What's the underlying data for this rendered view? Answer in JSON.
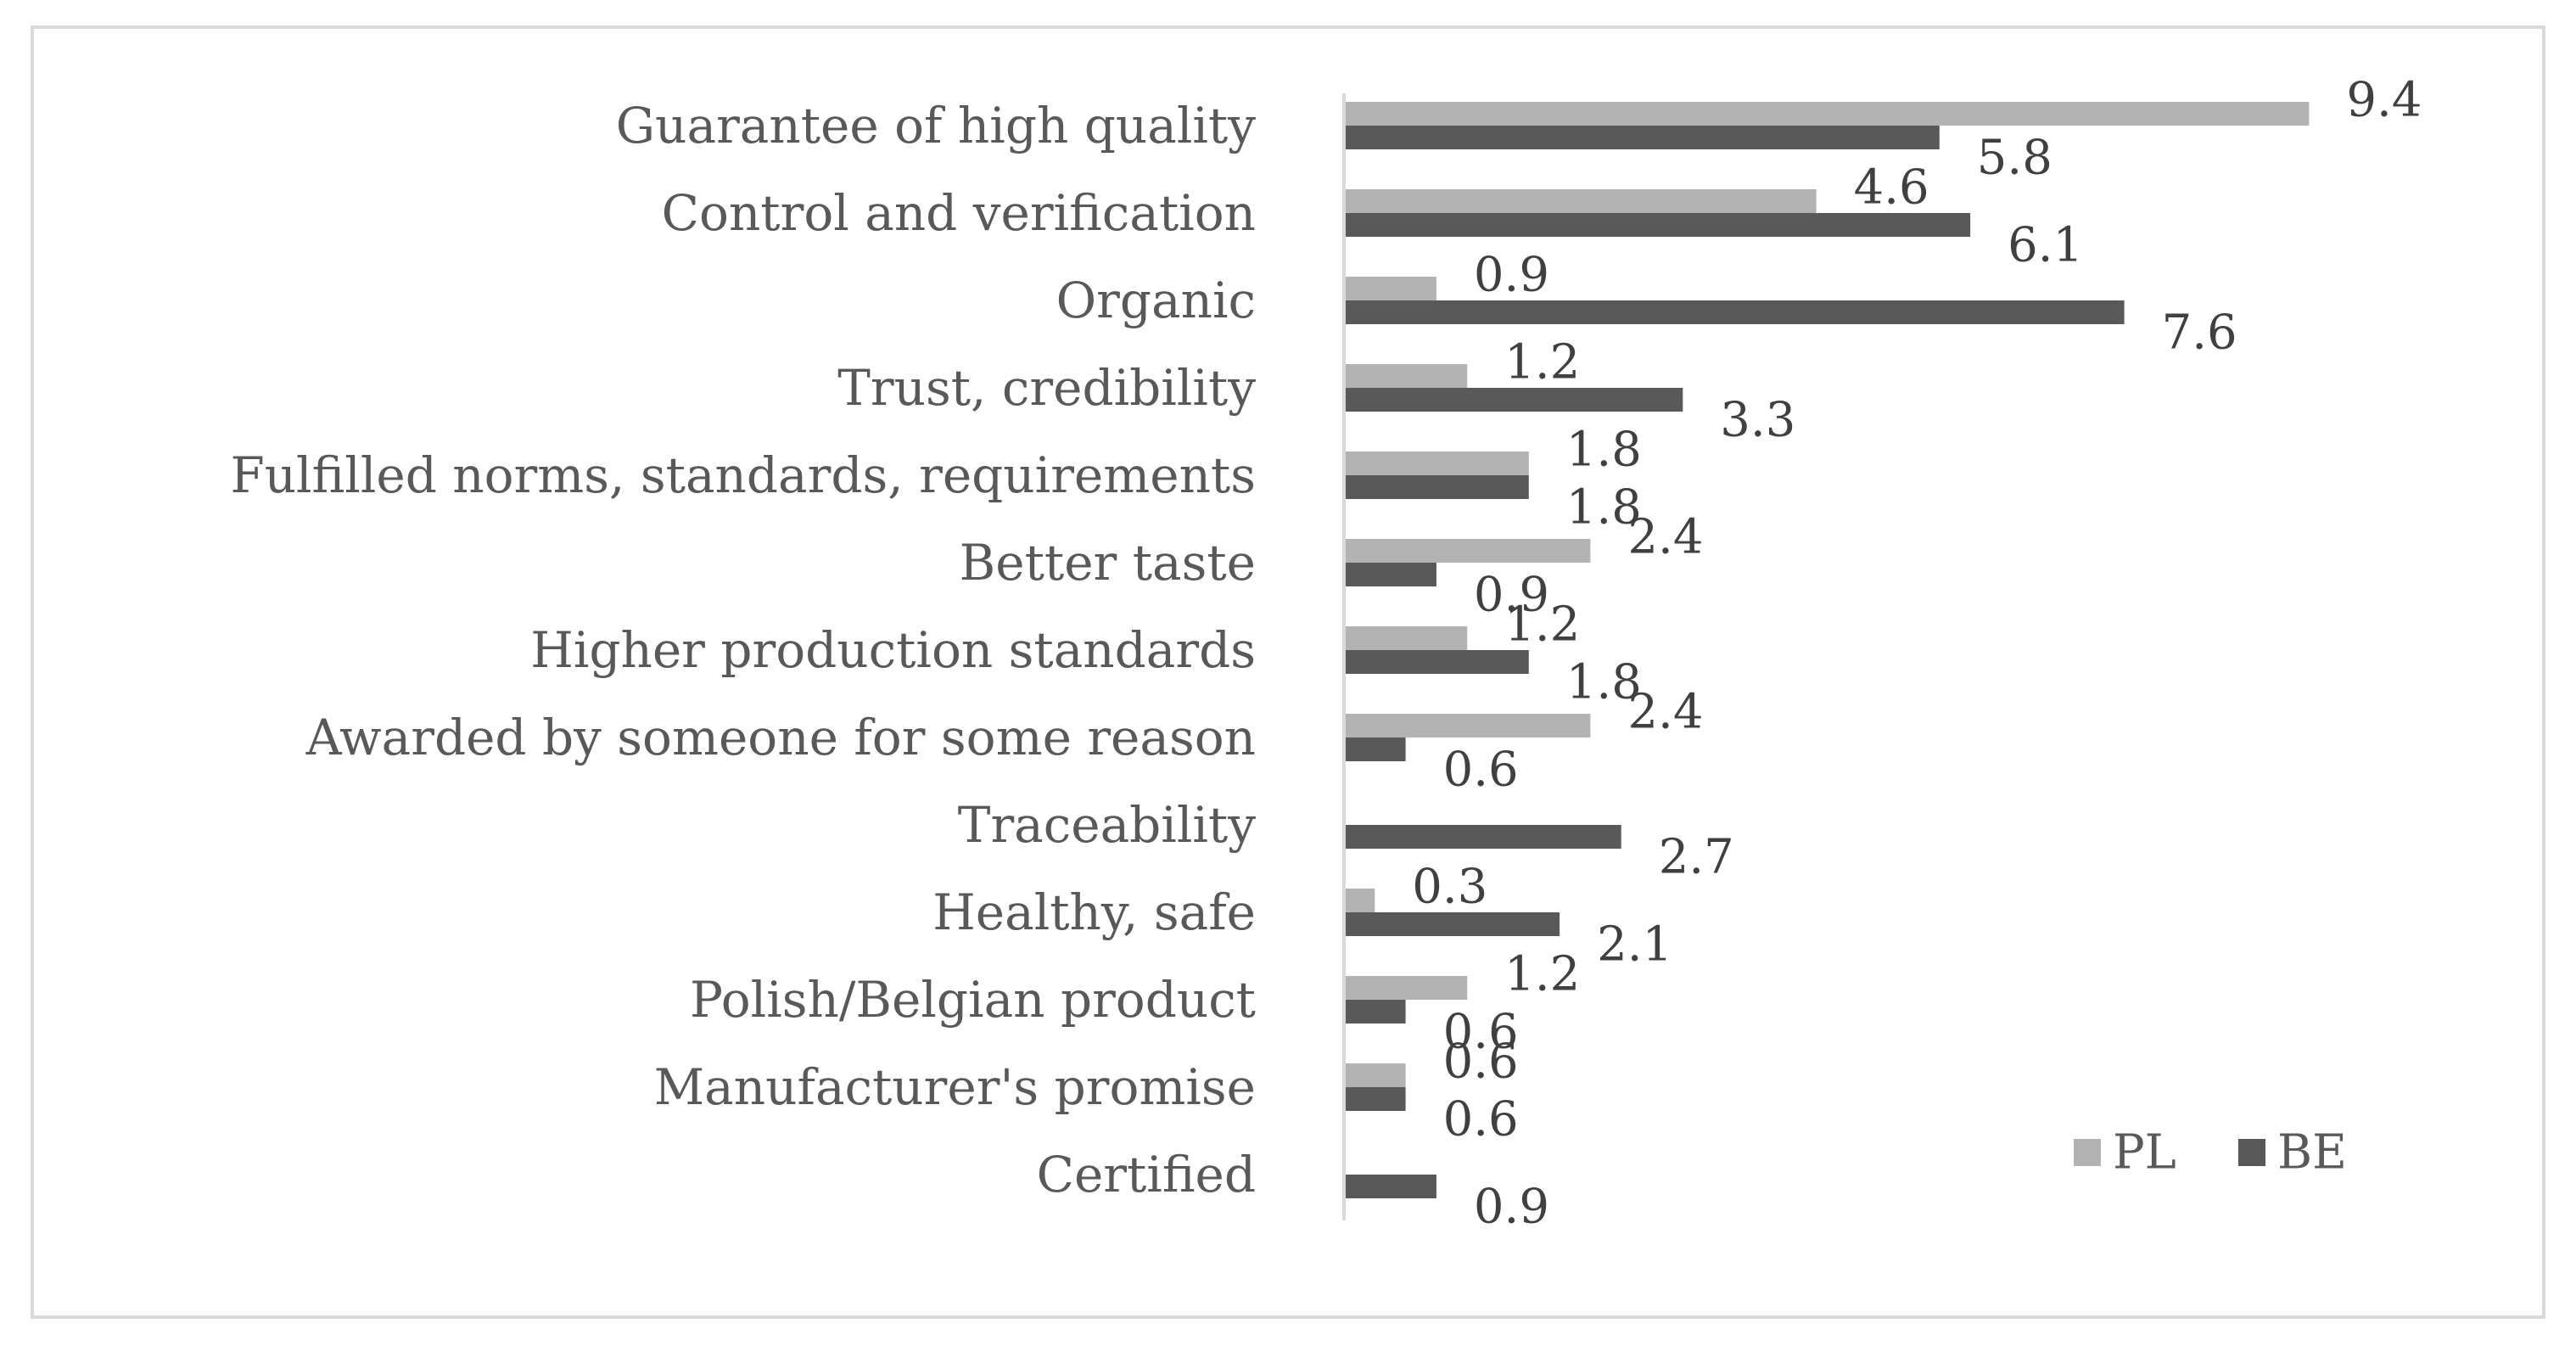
{
  "chart_data": {
    "type": "bar",
    "orientation": "horizontal",
    "categories": [
      "Guarantee of high quality",
      "Control and verification",
      "Organic",
      "Trust, credibility",
      "Fulfilled norms, standards, requirements",
      "Better taste",
      "Higher production standards",
      "Awarded by someone for some reason",
      "Traceability",
      "Healthy, safe",
      "Polish/Belgian product",
      "Manufacturer's promise",
      "Certified"
    ],
    "series": [
      {
        "name": "PL",
        "color": "#b3b3b3",
        "values": [
          9.4,
          4.6,
          0.9,
          1.2,
          1.8,
          2.4,
          1.2,
          2.4,
          null,
          0.3,
          1.2,
          0.6,
          null
        ],
        "labels": [
          "9.4",
          "4.6",
          "0.9",
          "1.2",
          "1.8",
          "2.4",
          "1.2",
          "2.4",
          "",
          "0.3",
          "1.2",
          "0.6",
          ""
        ]
      },
      {
        "name": "BE",
        "color": "#595959",
        "values": [
          5.8,
          6.1,
          7.6,
          3.3,
          1.8,
          0.9,
          1.8,
          0.6,
          2.7,
          2.1,
          0.6,
          0.6,
          0.9
        ],
        "labels": [
          "5.8",
          "6.1",
          "7.6",
          "3.3",
          "1.8",
          "0.9",
          "1.8",
          "0.6",
          "2.7",
          "2.1",
          "0.6",
          "0.6",
          "0.9"
        ]
      }
    ],
    "title": "",
    "xlabel": "",
    "ylabel": "",
    "xlim": [
      0,
      10
    ],
    "grid": false,
    "legend_position": "bottom-right"
  }
}
